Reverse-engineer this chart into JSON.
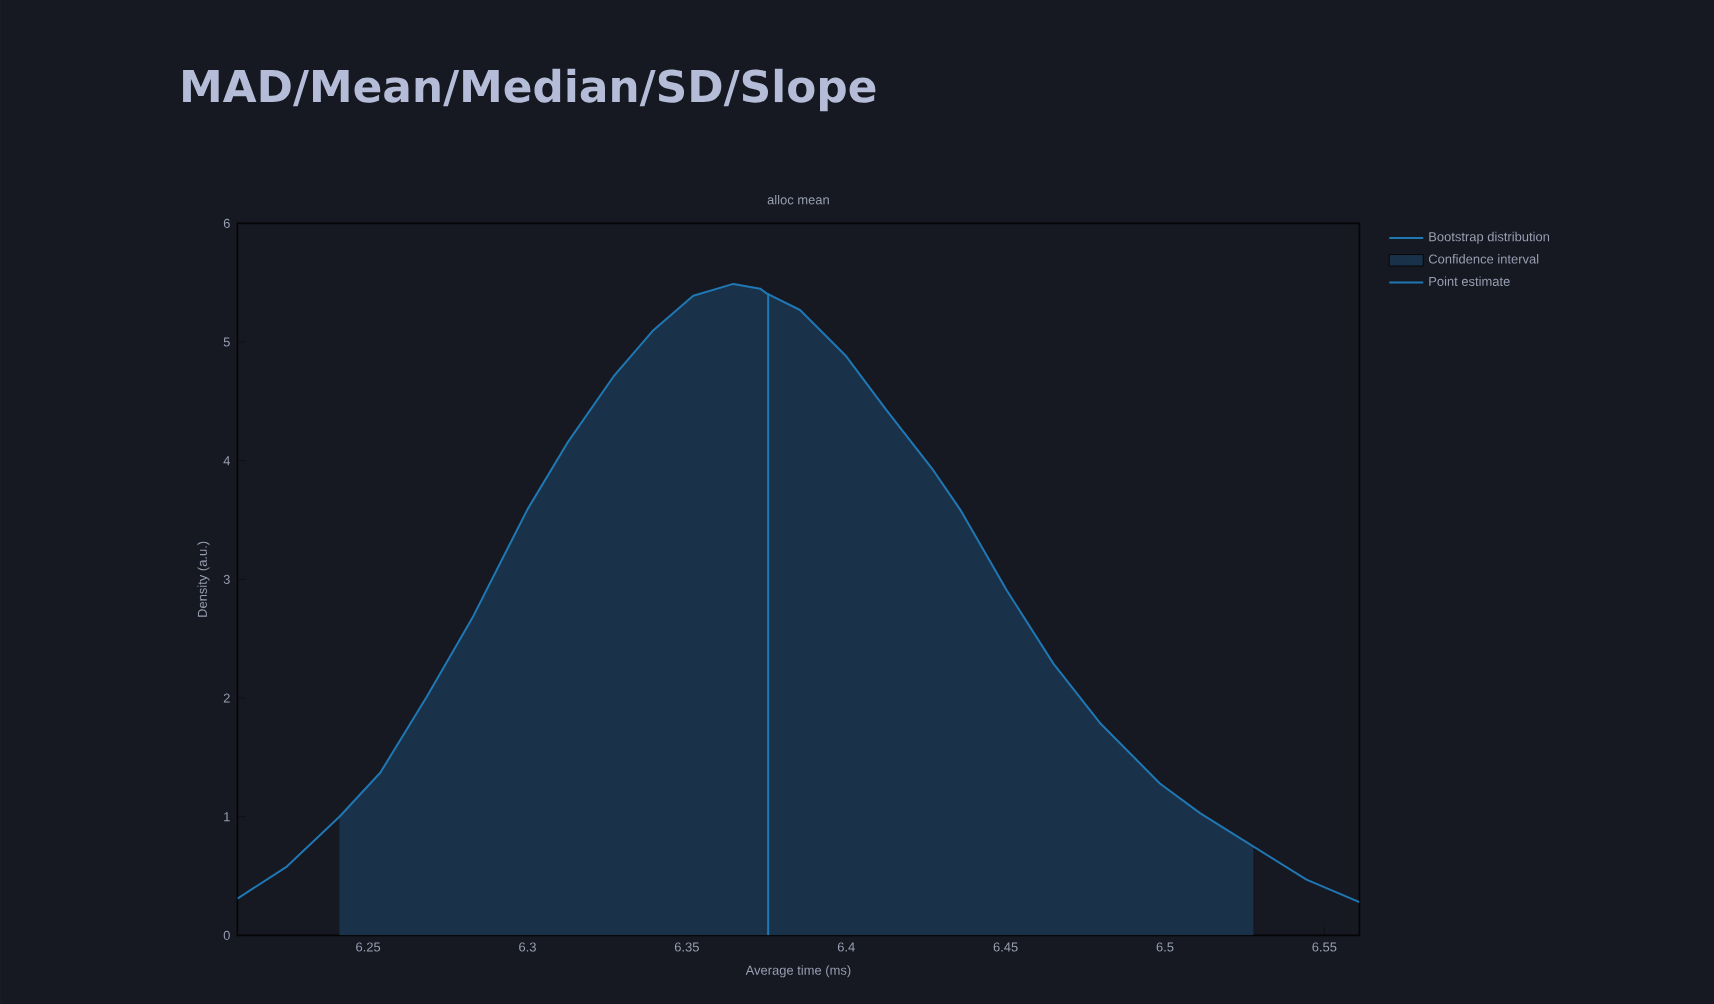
{
  "chart_data": {
    "type": "line",
    "title": "MAD/Mean/Median/SD/Slope",
    "subtitle": "alloc mean",
    "xlabel": "Average time (ms)",
    "ylabel": "Density (a.u.)",
    "xlim": [
      6.209,
      6.561
    ],
    "ylim": [
      0,
      6
    ],
    "xticks": [
      6.25,
      6.3,
      6.35,
      6.4,
      6.45,
      6.5,
      6.55
    ],
    "yticks": [
      0,
      1,
      2,
      3,
      4,
      5,
      6
    ],
    "legend": "top right",
    "series": [
      {
        "name": "Bootstrap distribution",
        "color": "#1f78b4",
        "x": [
          6.209,
          6.2245,
          6.241,
          6.2538,
          6.2684,
          6.283,
          6.3,
          6.3125,
          6.327,
          6.3395,
          6.352,
          6.3646,
          6.373,
          6.375,
          6.3855,
          6.4,
          6.4125,
          6.4273,
          6.4357,
          6.4503,
          6.465,
          6.4796,
          6.4984,
          6.511,
          6.5277,
          6.5444,
          6.561
        ],
        "values": [
          0.31,
          0.58,
          1.0,
          1.37,
          2.01,
          2.69,
          3.59,
          4.15,
          4.71,
          5.1,
          5.39,
          5.49,
          5.45,
          5.41,
          5.27,
          4.88,
          4.43,
          3.92,
          3.59,
          2.91,
          2.29,
          1.79,
          1.28,
          1.03,
          0.75,
          0.47,
          0.28
        ]
      },
      {
        "name": "Confidence interval",
        "type": "area",
        "color": "#1a3249",
        "x": [
          6.241,
          6.2538,
          6.2684,
          6.283,
          6.3,
          6.3125,
          6.327,
          6.3395,
          6.352,
          6.3646,
          6.373,
          6.375,
          6.3855,
          6.4,
          6.4125,
          6.4273,
          6.4357,
          6.4503,
          6.465,
          6.4796,
          6.4984,
          6.511,
          6.5277
        ],
        "values": [
          1.0,
          1.37,
          2.01,
          2.69,
          3.59,
          4.15,
          4.71,
          5.1,
          5.39,
          5.49,
          5.45,
          5.41,
          5.27,
          4.88,
          4.43,
          3.92,
          3.59,
          2.91,
          2.29,
          1.79,
          1.28,
          1.03,
          0.75
        ]
      },
      {
        "name": "Point estimate",
        "color": "#1f78b4",
        "x": [
          6.3755,
          6.3755
        ],
        "values": [
          0,
          5.41
        ]
      }
    ]
  }
}
